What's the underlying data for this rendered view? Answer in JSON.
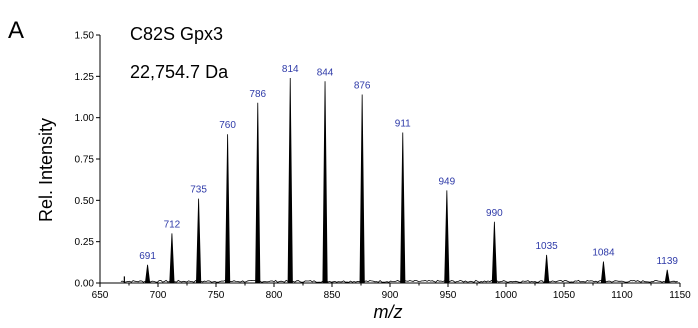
{
  "panel_label": "A",
  "colors": {
    "axis": "#000000",
    "peak": "#000000",
    "annotation": "#2e3aa8"
  },
  "chart_data": {
    "type": "line",
    "title": "C82S Gpx3",
    "subtitle": "22,754.7 Da",
    "xlabel": "m/z",
    "ylabel": "Rel. Intensity",
    "xlim": [
      650,
      1150
    ],
    "ylim": [
      0,
      1.5
    ],
    "x_ticks": [
      650,
      700,
      750,
      800,
      850,
      900,
      950,
      1000,
      1050,
      1100,
      1150
    ],
    "y_ticks": [
      0.0,
      0.25,
      0.5,
      0.75,
      1.0,
      1.25,
      1.5
    ],
    "y_tick_labels": [
      "0.00",
      "0.25",
      "0.50",
      "0.75",
      "1.00",
      "1.25",
      "1.50"
    ],
    "grid": false,
    "series": [
      {
        "values": [
          {
            "x": 691,
            "y": 0.11,
            "label": "691"
          },
          {
            "x": 712,
            "y": 0.3,
            "label": "712"
          },
          {
            "x": 735,
            "y": 0.51,
            "label": "735"
          },
          {
            "x": 760,
            "y": 0.9,
            "label": "760"
          },
          {
            "x": 786,
            "y": 1.09,
            "label": "786"
          },
          {
            "x": 814,
            "y": 1.24,
            "label": "814"
          },
          {
            "x": 844,
            "y": 1.22,
            "label": "844"
          },
          {
            "x": 876,
            "y": 1.14,
            "label": "876"
          },
          {
            "x": 911,
            "y": 0.91,
            "label": "911"
          },
          {
            "x": 949,
            "y": 0.56,
            "label": "949"
          },
          {
            "x": 990,
            "y": 0.37,
            "label": "990"
          },
          {
            "x": 1035,
            "y": 0.17,
            "label": "1035"
          },
          {
            "x": 1084,
            "y": 0.13,
            "label": "1084"
          },
          {
            "x": 1139,
            "y": 0.08,
            "label": "1139"
          }
        ]
      }
    ]
  }
}
